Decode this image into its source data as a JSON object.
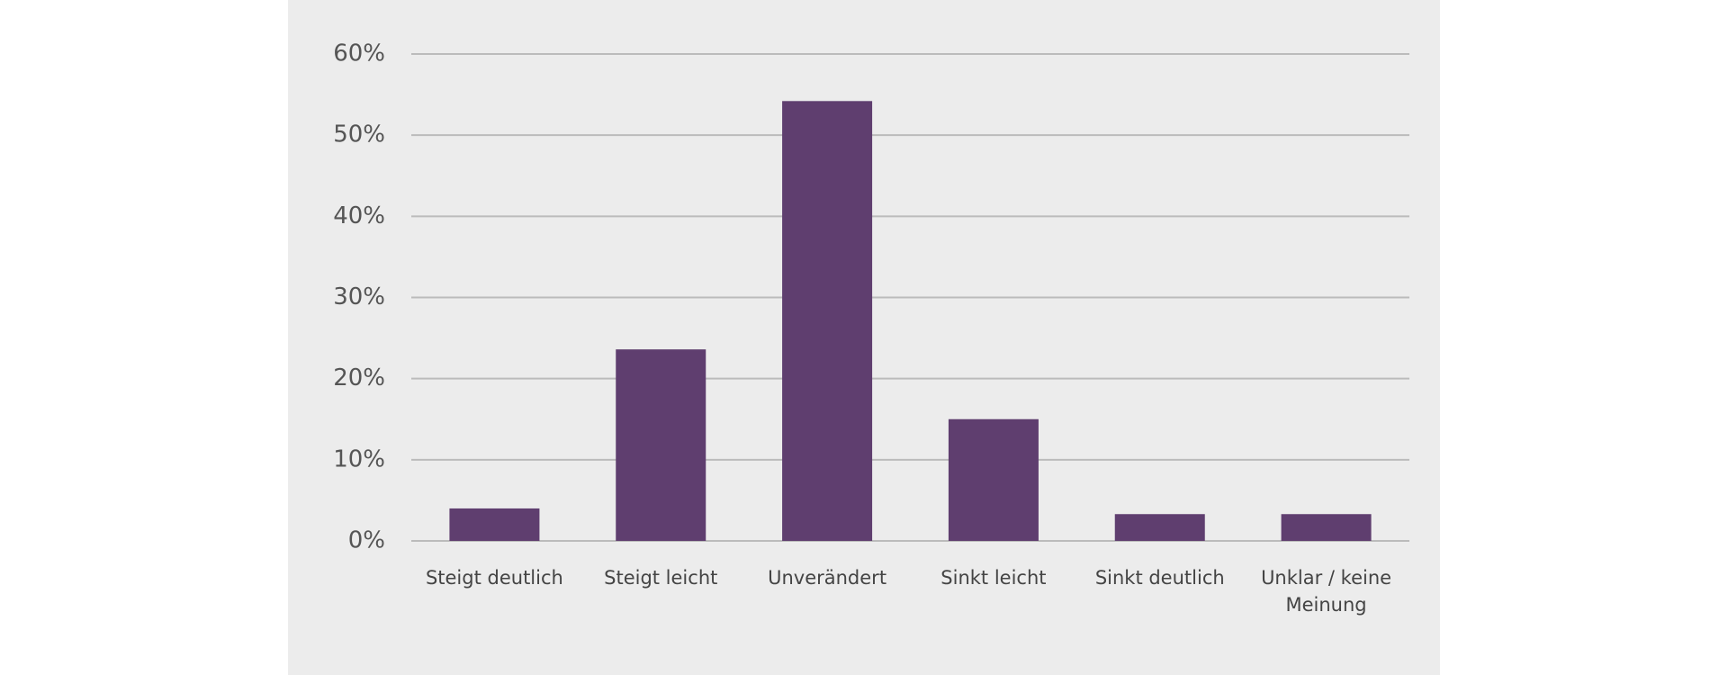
{
  "chart_data": {
    "type": "bar",
    "categories": [
      "Steigt deutlich",
      "Steigt leicht",
      "Unverändert",
      "Sinkt leicht",
      "Sinkt deutlich",
      "Unklar / keine Meinung"
    ],
    "values": [
      4,
      23.6,
      54.2,
      15,
      3.3,
      3.3
    ],
    "color": "#5f3e6f",
    "ylim": [
      0,
      60
    ],
    "yticks": [
      {
        "value": 0,
        "label": "0%"
      },
      {
        "value": 10,
        "label": "10%"
      },
      {
        "value": 20,
        "label": "20%"
      },
      {
        "value": 30,
        "label": "30%"
      },
      {
        "value": 40,
        "label": "40%"
      },
      {
        "value": 50,
        "label": "50%"
      },
      {
        "value": 60,
        "label": "60%"
      }
    ],
    "grid": true
  }
}
